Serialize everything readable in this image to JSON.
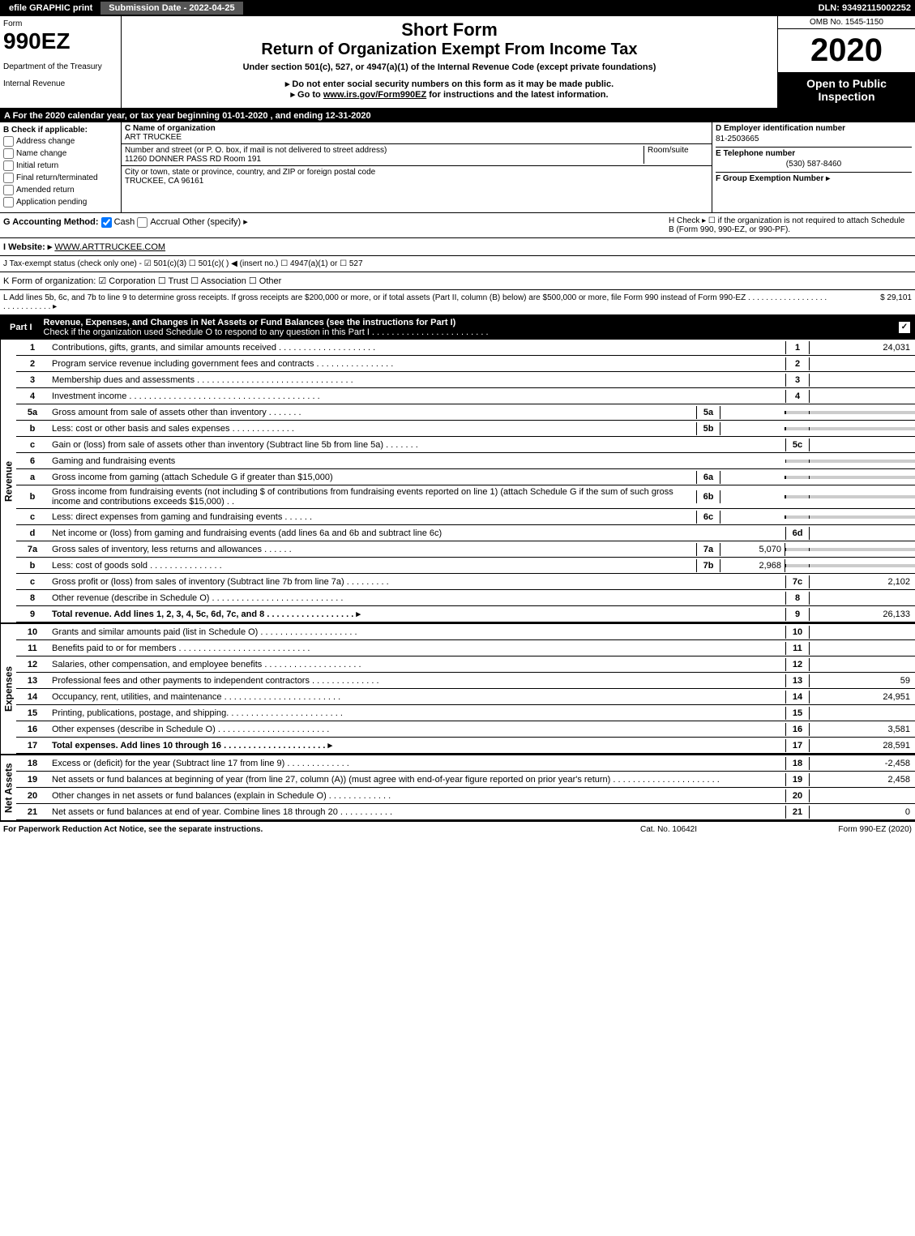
{
  "topbar": {
    "efile": "efile GRAPHIC print",
    "submission": "Submission Date - 2022-04-25",
    "dln": "DLN: 93492115002252"
  },
  "header": {
    "form_label": "Form",
    "form_number": "990EZ",
    "dept1": "Department of the Treasury",
    "dept2": "Internal Revenue",
    "short_form": "Short Form",
    "title": "Return of Organization Exempt From Income Tax",
    "under": "Under section 501(c), 527, or 4947(a)(1) of the Internal Revenue Code (except private foundations)",
    "note1": "▸ Do not enter social security numbers on this form as it may be made public.",
    "note2_pre": "▸ Go to ",
    "note2_link": "www.irs.gov/Form990EZ",
    "note2_post": " for instructions and the latest information.",
    "omb": "OMB No. 1545-1150",
    "year": "2020",
    "open": "Open to Public Inspection"
  },
  "lineA": "A For the 2020 calendar year, or tax year beginning 01-01-2020 , and ending 12-31-2020",
  "boxB": {
    "head": "B Check if applicable:",
    "opts": [
      "Address change",
      "Name change",
      "Initial return",
      "Final return/terminated",
      "Amended return",
      "Application pending"
    ]
  },
  "boxC": {
    "name_label": "C Name of organization",
    "name": "ART TRUCKEE",
    "addr_label": "Number and street (or P. O. box, if mail is not delivered to street address)",
    "room_label": "Room/suite",
    "addr": "11260 DONNER PASS RD Room 191",
    "city_label": "City or town, state or province, country, and ZIP or foreign postal code",
    "city": "TRUCKEE, CA  96161"
  },
  "boxD": {
    "ein_label": "D Employer identification number",
    "ein": "81-2503665",
    "tel_label": "E Telephone number",
    "tel": "(530) 587-8460",
    "group_label": "F Group Exemption Number ▸"
  },
  "lineG": {
    "label": "G Accounting Method:",
    "cash": "Cash",
    "accrual": "Accrual",
    "other": "Other (specify) ▸"
  },
  "lineH": "H Check ▸ ☐ if the organization is not required to attach Schedule B (Form 990, 990-EZ, or 990-PF).",
  "lineI": {
    "label": "I Website: ▸",
    "url": "WWW.ARTTRUCKEE.COM"
  },
  "lineJ": "J Tax-exempt status (check only one) - ☑ 501(c)(3) ☐ 501(c)( ) ◀ (insert no.) ☐ 4947(a)(1) or ☐ 527",
  "lineK": "K Form of organization: ☑ Corporation ☐ Trust ☐ Association ☐ Other",
  "lineL": {
    "text": "L Add lines 5b, 6c, and 7b to line 9 to determine gross receipts. If gross receipts are $200,000 or more, or if total assets (Part II, column (B) below) are $500,000 or more, file Form 990 instead of Form 990-EZ . . . . . . . . . . . . . . . . . . . . . . . . . . . . . ▸",
    "amount": "$ 29,101"
  },
  "partI": {
    "label": "Part I",
    "title": "Revenue, Expenses, and Changes in Net Assets or Fund Balances (see the instructions for Part I)",
    "check_text": "Check if the organization used Schedule O to respond to any question in this Part I . . . . . . . . . . . . . . . . . . . . . . . ."
  },
  "sections": {
    "revenue": "Revenue",
    "expenses": "Expenses",
    "netassets": "Net Assets"
  },
  "lines": [
    {
      "n": "1",
      "d": "Contributions, gifts, grants, and similar amounts received . . . . . . . . . . . . . . . . . . . .",
      "bn": "1",
      "bv": "24,031"
    },
    {
      "n": "2",
      "d": "Program service revenue including government fees and contracts . . . . . . . . . . . . . . . .",
      "bn": "2",
      "bv": ""
    },
    {
      "n": "3",
      "d": "Membership dues and assessments . . . . . . . . . . . . . . . . . . . . . . . . . . . . . . . .",
      "bn": "3",
      "bv": ""
    },
    {
      "n": "4",
      "d": "Investment income . . . . . . . . . . . . . . . . . . . . . . . . . . . . . . . . . . . . . . .",
      "bn": "4",
      "bv": ""
    },
    {
      "n": "5a",
      "d": "Gross amount from sale of assets other than inventory . . . . . . .",
      "in": "5a",
      "iv": "",
      "shaded": true
    },
    {
      "n": "b",
      "d": "Less: cost or other basis and sales expenses . . . . . . . . . . . . .",
      "in": "5b",
      "iv": "",
      "shaded": true
    },
    {
      "n": "c",
      "d": "Gain or (loss) from sale of assets other than inventory (Subtract line 5b from line 5a) . . . . . . .",
      "bn": "5c",
      "bv": ""
    },
    {
      "n": "6",
      "d": "Gaming and fundraising events",
      "shaded": true
    },
    {
      "n": "a",
      "d": "Gross income from gaming (attach Schedule G if greater than $15,000)",
      "in": "6a",
      "iv": "",
      "shaded": true
    },
    {
      "n": "b",
      "d": "Gross income from fundraising events (not including $                    of contributions from fundraising events reported on line 1) (attach Schedule G if the sum of such gross income and contributions exceeds $15,000) . .",
      "in": "6b",
      "iv": "",
      "shaded": true
    },
    {
      "n": "c",
      "d": "Less: direct expenses from gaming and fundraising events . . . . . .",
      "in": "6c",
      "iv": "",
      "shaded": true
    },
    {
      "n": "d",
      "d": "Net income or (loss) from gaming and fundraising events (add lines 6a and 6b and subtract line 6c)",
      "bn": "6d",
      "bv": ""
    },
    {
      "n": "7a",
      "d": "Gross sales of inventory, less returns and allowances . . . . . .",
      "in": "7a",
      "iv": "5,070",
      "shaded": true
    },
    {
      "n": "b",
      "d": "Less: cost of goods sold         . . . . . . . . . . . . . . .",
      "in": "7b",
      "iv": "2,968",
      "shaded": true
    },
    {
      "n": "c",
      "d": "Gross profit or (loss) from sales of inventory (Subtract line 7b from line 7a) . . . . . . . . .",
      "bn": "7c",
      "bv": "2,102"
    },
    {
      "n": "8",
      "d": "Other revenue (describe in Schedule O) . . . . . . . . . . . . . . . . . . . . . . . . . . .",
      "bn": "8",
      "bv": ""
    },
    {
      "n": "9",
      "d": "Total revenue. Add lines 1, 2, 3, 4, 5c, 6d, 7c, and 8 . . . . . . . . . . . . . . . . . . ▸",
      "bn": "9",
      "bv": "26,133",
      "bold": true
    }
  ],
  "lines_exp": [
    {
      "n": "10",
      "d": "Grants and similar amounts paid (list in Schedule O) . . . . . . . . . . . . . . . . . . . .",
      "bn": "10",
      "bv": ""
    },
    {
      "n": "11",
      "d": "Benefits paid to or for members      . . . . . . . . . . . . . . . . . . . . . . . . . . .",
      "bn": "11",
      "bv": ""
    },
    {
      "n": "12",
      "d": "Salaries, other compensation, and employee benefits . . . . . . . . . . . . . . . . . . . .",
      "bn": "12",
      "bv": ""
    },
    {
      "n": "13",
      "d": "Professional fees and other payments to independent contractors . . . . . . . . . . . . . .",
      "bn": "13",
      "bv": "59"
    },
    {
      "n": "14",
      "d": "Occupancy, rent, utilities, and maintenance . . . . . . . . . . . . . . . . . . . . . . . .",
      "bn": "14",
      "bv": "24,951"
    },
    {
      "n": "15",
      "d": "Printing, publications, postage, and shipping. . . . . . . . . . . . . . . . . . . . . . . .",
      "bn": "15",
      "bv": ""
    },
    {
      "n": "16",
      "d": "Other expenses (describe in Schedule O)     . . . . . . . . . . . . . . . . . . . . . . .",
      "bn": "16",
      "bv": "3,581"
    },
    {
      "n": "17",
      "d": "Total expenses. Add lines 10 through 16    . . . . . . . . . . . . . . . . . . . . . ▸",
      "bn": "17",
      "bv": "28,591",
      "bold": true
    }
  ],
  "lines_na": [
    {
      "n": "18",
      "d": "Excess or (deficit) for the year (Subtract line 17 from line 9)       . . . . . . . . . . . . .",
      "bn": "18",
      "bv": "-2,458"
    },
    {
      "n": "19",
      "d": "Net assets or fund balances at beginning of year (from line 27, column (A)) (must agree with end-of-year figure reported on prior year's return) . . . . . . . . . . . . . . . . . . . . . .",
      "bn": "19",
      "bv": "2,458"
    },
    {
      "n": "20",
      "d": "Other changes in net assets or fund balances (explain in Schedule O) . . . . . . . . . . . . .",
      "bn": "20",
      "bv": ""
    },
    {
      "n": "21",
      "d": "Net assets or fund balances at end of year. Combine lines 18 through 20 . . . . . . . . . . .",
      "bn": "21",
      "bv": "0"
    }
  ],
  "footer": {
    "left": "For Paperwork Reduction Act Notice, see the separate instructions.",
    "mid": "Cat. No. 10642I",
    "right": "Form 990-EZ (2020)"
  }
}
